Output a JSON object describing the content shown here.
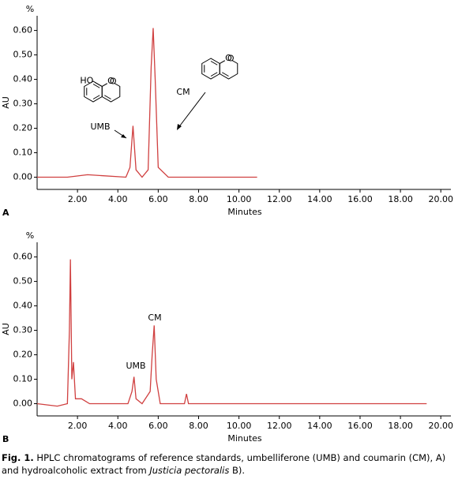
{
  "chart_data": [
    {
      "type": "line",
      "panel": "A",
      "yunit": "%",
      "ylabel": "AU",
      "xlabel": "Minutes",
      "color": "#d04040",
      "xlim": [
        0,
        20.5
      ],
      "ylim": [
        -0.05,
        0.66
      ],
      "xticks": [
        {
          "value": 2,
          "label": "2.00"
        },
        {
          "value": 4,
          "label": "4.00"
        },
        {
          "value": 6,
          "label": "6.00"
        },
        {
          "value": 8,
          "label": "8.00"
        },
        {
          "value": 10,
          "label": "10.00"
        },
        {
          "value": 12,
          "label": "12.00"
        },
        {
          "value": 14,
          "label": "14.00"
        },
        {
          "value": 16,
          "label": "16.00"
        },
        {
          "value": 18,
          "label": "18.00"
        },
        {
          "value": 20,
          "label": "20.00"
        }
      ],
      "yticks": [
        {
          "value": 0,
          "label": "0.00"
        },
        {
          "value": 0.1,
          "label": "0.10"
        },
        {
          "value": 0.2,
          "label": "0.20"
        },
        {
          "value": 0.3,
          "label": "0.30"
        },
        {
          "value": 0.4,
          "label": "0.40"
        },
        {
          "value": 0.5,
          "label": "0.50"
        },
        {
          "value": 0.6,
          "label": "0.60"
        }
      ],
      "x": [
        0,
        1.5,
        2.5,
        4.4,
        4.6,
        4.75,
        4.9,
        5.2,
        5.5,
        5.65,
        5.75,
        5.85,
        6.0,
        6.5,
        8.0,
        10.9
      ],
      "values": [
        0,
        0,
        0.01,
        0,
        0.04,
        0.21,
        0.03,
        0,
        0.03,
        0.45,
        0.61,
        0.4,
        0.04,
        0,
        0,
        0
      ],
      "annotations": [
        "UMB",
        "CM"
      ]
    },
    {
      "type": "line",
      "panel": "B",
      "yunit": "%",
      "ylabel": "AU",
      "xlabel": "Minutes",
      "color": "#d04040",
      "xlim": [
        0,
        20.5
      ],
      "ylim": [
        -0.05,
        0.66
      ],
      "xticks": [
        {
          "value": 2,
          "label": "2.00"
        },
        {
          "value": 4,
          "label": "4.00"
        },
        {
          "value": 6,
          "label": "6.00"
        },
        {
          "value": 8,
          "label": "8.00"
        },
        {
          "value": 10,
          "label": "10.00"
        },
        {
          "value": 12,
          "label": "12.00"
        },
        {
          "value": 14,
          "label": "14.00"
        },
        {
          "value": 16,
          "label": "16.00"
        },
        {
          "value": 18,
          "label": "18.00"
        },
        {
          "value": 20,
          "label": "20.00"
        }
      ],
      "yticks": [
        {
          "value": 0,
          "label": "0.00"
        },
        {
          "value": 0.1,
          "label": "0.10"
        },
        {
          "value": 0.2,
          "label": "0.20"
        },
        {
          "value": 0.3,
          "label": "0.30"
        },
        {
          "value": 0.4,
          "label": "0.40"
        },
        {
          "value": 0.5,
          "label": "0.50"
        },
        {
          "value": 0.6,
          "label": "0.60"
        }
      ],
      "x": [
        0,
        1.0,
        1.5,
        1.6,
        1.65,
        1.72,
        1.8,
        1.9,
        2.2,
        2.6,
        4.5,
        4.7,
        4.8,
        4.9,
        5.2,
        5.6,
        5.7,
        5.8,
        5.9,
        6.1,
        7.3,
        7.4,
        7.5,
        8.5,
        15,
        19.3
      ],
      "values": [
        0,
        -0.01,
        0,
        0.3,
        0.59,
        0.1,
        0.17,
        0.02,
        0.02,
        0,
        0,
        0.05,
        0.11,
        0.02,
        0,
        0.05,
        0.2,
        0.32,
        0.1,
        0,
        0,
        0.04,
        0,
        0,
        0,
        0
      ],
      "annotations": [
        "UMB",
        "CM"
      ]
    }
  ],
  "structures": {
    "umb": [
      "HO",
      "O",
      "O"
    ],
    "cm": [
      "O",
      "O"
    ]
  },
  "caption": {
    "label": "Fig. 1.",
    "text": " HPLC chromatograms of reference standards, umbelliferone (UMB) and coumarin (CM), A) and hydroalcoholic extract from ",
    "species": "Justicia pectoralis",
    "end": " B)."
  }
}
